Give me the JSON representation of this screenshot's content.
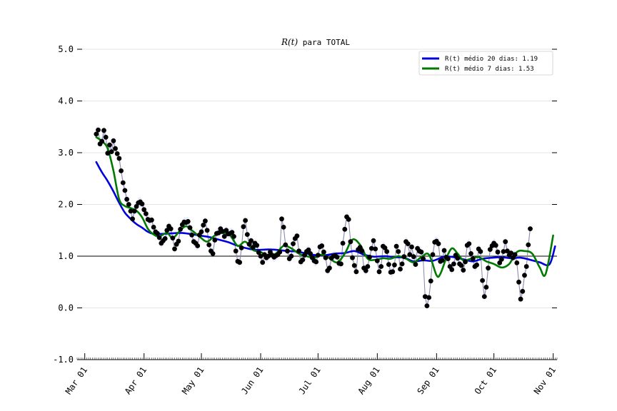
{
  "chart_data": {
    "type": "line",
    "title": {
      "math": "R(t)",
      "rest": " para TOTAL"
    },
    "xlabel": "",
    "ylabel": "",
    "ylim": [
      -1.0,
      5.0
    ],
    "yticks": [
      "-1.0",
      "0.0",
      "1.0",
      "2.0",
      "3.0",
      "4.0",
      "5.0"
    ],
    "xlim": [
      "2020-02-26",
      "2020-11-03"
    ],
    "xticks": [
      {
        "date": "2020-03-01",
        "label": "Mar 01"
      },
      {
        "date": "2020-04-01",
        "label": "Apr 01"
      },
      {
        "date": "2020-05-01",
        "label": "May 01"
      },
      {
        "date": "2020-06-01",
        "label": "Jun 01"
      },
      {
        "date": "2020-07-01",
        "label": "Jul 01"
      },
      {
        "date": "2020-08-01",
        "label": "Aug 01"
      },
      {
        "date": "2020-09-01",
        "label": "Sep 01"
      },
      {
        "date": "2020-10-01",
        "label": "Oct 01"
      },
      {
        "date": "2020-11-01",
        "label": "Nov 01"
      }
    ],
    "reference_line": 1.0,
    "grid": "horizontal",
    "legend_position": "top-right",
    "legend": [
      "R(t) médio 20 dias: 1.19",
      "R(t) médio 7 dias: 1.53"
    ],
    "colors": {
      "ma20": "#0000dd",
      "ma7": "#007a00",
      "points": "#000000",
      "thin_line": "#8888aa",
      "band": "#c8c8f0",
      "grid": "#e6e6e6"
    },
    "daily_rt": {
      "start_date": "2020-03-07",
      "values": [
        3.36,
        3.44,
        3.17,
        3.22,
        3.43,
        3.3,
        2.99,
        3.15,
        3.02,
        3.23,
        3.08,
        2.98,
        2.89,
        2.65,
        2.42,
        2.27,
        2.1,
        2.0,
        1.87,
        1.72,
        1.87,
        1.96,
        2.03,
        2.05,
        2.01,
        1.9,
        1.82,
        1.71,
        1.69,
        1.7,
        1.56,
        1.47,
        1.44,
        1.36,
        1.25,
        1.3,
        1.34,
        1.5,
        1.58,
        1.53,
        1.35,
        1.14,
        1.23,
        1.29,
        1.52,
        1.61,
        1.66,
        1.65,
        1.67,
        1.55,
        1.41,
        1.28,
        1.25,
        1.2,
        1.41,
        1.47,
        1.6,
        1.68,
        1.5,
        1.22,
        1.1,
        1.05,
        1.31,
        1.44,
        1.45,
        1.53,
        1.48,
        1.38,
        1.5,
        1.43,
        1.44,
        1.46,
        1.38,
        1.1,
        0.9,
        0.88,
        1.16,
        1.57,
        1.69,
        1.42,
        1.23,
        1.3,
        1.17,
        1.25,
        1.21,
        1.07,
        1.0,
        0.88,
        1.03,
        0.97,
        1.0,
        1.08,
        1.02,
        0.98,
        1.01,
        1.03,
        1.08,
        1.72,
        1.56,
        1.22,
        1.1,
        0.95,
        1.0,
        1.24,
        1.34,
        1.39,
        1.1,
        0.89,
        0.93,
        1.02,
        1.09,
        1.12,
        1.05,
        0.97,
        0.91,
        0.89,
        1.02,
        1.18,
        1.2,
        1.08,
        0.97,
        0.72,
        0.77,
        0.96,
        1.0,
        1.01,
        0.98,
        0.86,
        0.85,
        1.25,
        1.52,
        1.76,
        1.71,
        1.28,
        0.97,
        0.82,
        0.7,
        1.13,
        1.17,
        1.1,
        0.77,
        0.72,
        0.8,
        0.98,
        1.15,
        1.3,
        1.14,
        0.91,
        0.7,
        0.8,
        1.19,
        1.16,
        1.09,
        0.84,
        0.69,
        0.7,
        0.83,
        1.19,
        1.09,
        0.75,
        0.85,
        0.99,
        1.28,
        1.24,
        1.03,
        1.18,
        0.99,
        0.84,
        1.15,
        1.1,
        1.08,
        0.95,
        0.22,
        0.04,
        0.2,
        0.52,
        1.03,
        1.27,
        1.29,
        1.24,
        0.9,
        0.92,
        1.11,
        0.98,
        0.95,
        0.8,
        0.74,
        0.85,
        1.02,
        0.96,
        0.85,
        0.82,
        0.73,
        0.89,
        1.21,
        1.24,
        1.05,
        0.95,
        0.8,
        0.83,
        1.14,
        1.09,
        0.53,
        0.22,
        0.4,
        0.77,
        1.13,
        1.2,
        1.25,
        1.21,
        1.08,
        0.87,
        0.94,
        1.09,
        1.28,
        1.1,
        1.02,
        1.06,
        0.97,
        1.03,
        0.87,
        0.5,
        0.17,
        0.32,
        0.63,
        0.8,
        1.22,
        1.53
      ]
    },
    "series": [
      {
        "name": "R(t) médio 20 dias: 1.19",
        "points": [
          [
            "2020-03-07",
            2.82
          ],
          [
            "2020-03-10",
            2.62
          ],
          [
            "2020-03-13",
            2.45
          ],
          [
            "2020-03-16",
            2.25
          ],
          [
            "2020-03-19",
            2.03
          ],
          [
            "2020-03-22",
            1.84
          ],
          [
            "2020-03-25",
            1.72
          ],
          [
            "2020-03-28",
            1.62
          ],
          [
            "2020-03-31",
            1.55
          ],
          [
            "2020-04-03",
            1.47
          ],
          [
            "2020-04-06",
            1.43
          ],
          [
            "2020-04-10",
            1.43
          ],
          [
            "2020-04-15",
            1.44
          ],
          [
            "2020-04-20",
            1.45
          ],
          [
            "2020-04-25",
            1.43
          ],
          [
            "2020-04-30",
            1.4
          ],
          [
            "2020-05-05",
            1.37
          ],
          [
            "2020-05-10",
            1.32
          ],
          [
            "2020-05-15",
            1.27
          ],
          [
            "2020-05-20",
            1.2
          ],
          [
            "2020-05-25",
            1.15
          ],
          [
            "2020-05-30",
            1.12
          ],
          [
            "2020-06-05",
            1.13
          ],
          [
            "2020-06-10",
            1.12
          ],
          [
            "2020-06-15",
            1.1
          ],
          [
            "2020-06-20",
            1.09
          ],
          [
            "2020-06-25",
            1.05
          ],
          [
            "2020-06-30",
            1.02
          ],
          [
            "2020-07-05",
            1.02
          ],
          [
            "2020-07-10",
            1.05
          ],
          [
            "2020-07-15",
            1.06
          ],
          [
            "2020-07-20",
            1.1
          ],
          [
            "2020-07-25",
            1.03
          ],
          [
            "2020-07-30",
            0.99
          ],
          [
            "2020-08-05",
            1.0
          ],
          [
            "2020-08-10",
            0.98
          ],
          [
            "2020-08-15",
            0.97
          ],
          [
            "2020-08-20",
            0.9
          ],
          [
            "2020-08-25",
            0.92
          ],
          [
            "2020-08-30",
            0.91
          ],
          [
            "2020-09-05",
            0.99
          ],
          [
            "2020-09-10",
            0.98
          ],
          [
            "2020-09-15",
            0.94
          ],
          [
            "2020-09-20",
            0.9
          ],
          [
            "2020-09-25",
            0.95
          ],
          [
            "2020-09-30",
            0.97
          ],
          [
            "2020-10-05",
            0.98
          ],
          [
            "2020-10-10",
            0.96
          ],
          [
            "2020-10-15",
            0.97
          ],
          [
            "2020-10-20",
            0.93
          ],
          [
            "2020-10-25",
            0.88
          ],
          [
            "2020-10-30",
            0.84
          ],
          [
            "2020-11-02",
            1.19
          ]
        ]
      },
      {
        "name": "R(t) médio 7 dias: 1.53",
        "points": [
          [
            "2020-03-07",
            3.3
          ],
          [
            "2020-03-10",
            3.22
          ],
          [
            "2020-03-13",
            3.08
          ],
          [
            "2020-03-16",
            2.65
          ],
          [
            "2020-03-19",
            2.1
          ],
          [
            "2020-03-22",
            1.97
          ],
          [
            "2020-03-25",
            1.93
          ],
          [
            "2020-03-28",
            1.88
          ],
          [
            "2020-03-31",
            1.75
          ],
          [
            "2020-04-03",
            1.53
          ],
          [
            "2020-04-06",
            1.42
          ],
          [
            "2020-04-09",
            1.38
          ],
          [
            "2020-04-13",
            1.45
          ],
          [
            "2020-04-16",
            1.35
          ],
          [
            "2020-04-20",
            1.5
          ],
          [
            "2020-04-23",
            1.58
          ],
          [
            "2020-04-26",
            1.5
          ],
          [
            "2020-04-30",
            1.38
          ],
          [
            "2020-05-04",
            1.28
          ],
          [
            "2020-05-08",
            1.4
          ],
          [
            "2020-05-12",
            1.45
          ],
          [
            "2020-05-16",
            1.4
          ],
          [
            "2020-05-20",
            1.2
          ],
          [
            "2020-05-24",
            1.28
          ],
          [
            "2020-05-28",
            1.12
          ],
          [
            "2020-06-01",
            1.08
          ],
          [
            "2020-06-05",
            1.0
          ],
          [
            "2020-06-09",
            1.05
          ],
          [
            "2020-06-13",
            1.2
          ],
          [
            "2020-06-17",
            1.15
          ],
          [
            "2020-06-21",
            1.05
          ],
          [
            "2020-06-25",
            1.0
          ],
          [
            "2020-06-29",
            0.97
          ],
          [
            "2020-07-03",
            1.03
          ],
          [
            "2020-07-07",
            0.96
          ],
          [
            "2020-07-11",
            0.88
          ],
          [
            "2020-07-15",
            1.05
          ],
          [
            "2020-07-19",
            1.32
          ],
          [
            "2020-07-23",
            1.22
          ],
          [
            "2020-07-27",
            0.95
          ],
          [
            "2020-07-31",
            0.93
          ],
          [
            "2020-08-04",
            0.96
          ],
          [
            "2020-08-08",
            0.95
          ],
          [
            "2020-08-12",
            1.0
          ],
          [
            "2020-08-16",
            0.95
          ],
          [
            "2020-08-20",
            0.88
          ],
          [
            "2020-08-24",
            0.98
          ],
          [
            "2020-08-28",
            1.03
          ],
          [
            "2020-09-01",
            0.63
          ],
          [
            "2020-09-03",
            0.66
          ],
          [
            "2020-09-06",
            0.95
          ],
          [
            "2020-09-09",
            1.15
          ],
          [
            "2020-09-12",
            1.05
          ],
          [
            "2020-09-15",
            0.92
          ],
          [
            "2020-09-19",
            0.95
          ],
          [
            "2020-09-23",
            0.98
          ],
          [
            "2020-09-27",
            0.9
          ],
          [
            "2020-10-01",
            0.85
          ],
          [
            "2020-10-05",
            0.78
          ],
          [
            "2020-10-09",
            0.85
          ],
          [
            "2020-10-13",
            1.08
          ],
          [
            "2020-10-17",
            1.1
          ],
          [
            "2020-10-21",
            1.05
          ],
          [
            "2020-10-25",
            0.78
          ],
          [
            "2020-10-28",
            0.65
          ],
          [
            "2020-11-01",
            1.4
          ]
        ]
      }
    ]
  }
}
